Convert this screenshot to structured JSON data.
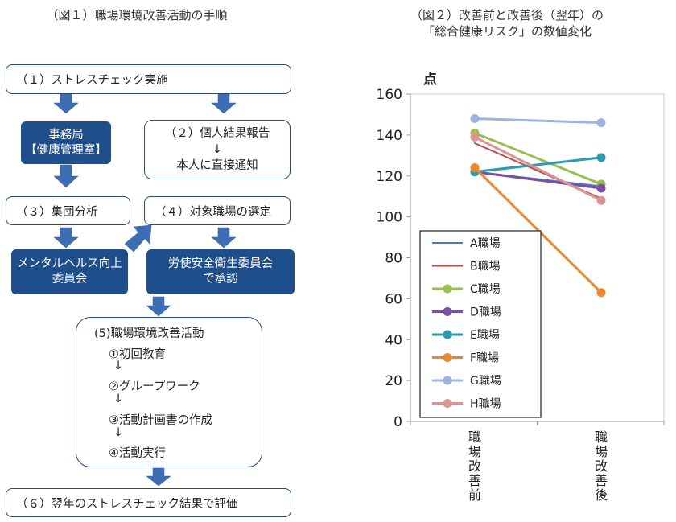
{
  "left": {
    "title": "（図１）職場環境改善活動の手順",
    "step1": "（１）ストレスチェック実施",
    "office_line1": "事務局",
    "office_line2": "【健康管理室】",
    "step2_line1": "（２）個人結果報告",
    "step2_arrow": "↓",
    "step2_line2": "本人に直接通知",
    "step3": "（３）集団分析",
    "step4": "（４）対象職場の選定",
    "mental_line1": "メンタルヘルス向上",
    "mental_line2": "委員会",
    "safety_line1": "労使安全衛生委員会",
    "safety_line2": "で承認",
    "step5_title": "(5)職場環境改善活動",
    "step5_items": [
      "①初回教育",
      "②グループワーク",
      "③活動計画書の作成",
      "④活動実行"
    ],
    "step5_arrow": "↓",
    "step6": "（６）翌年のストレスチェック結果で評価",
    "colors": {
      "dark_box": "#1f4e8c",
      "arrow": "#3d6db5",
      "border": "#2a4a7f"
    }
  },
  "chart_data": {
    "type": "line",
    "title_line1": "（図２）改善前と改善後（翌年）の",
    "title_line2": "「総合健康リスク」の数値変化",
    "ylabel": "点",
    "ylim": [
      0,
      160
    ],
    "yticks": [
      0,
      20,
      40,
      60,
      80,
      100,
      120,
      140,
      160
    ],
    "categories": [
      "職場改善前",
      "職場改善後"
    ],
    "grid": false,
    "legend_position": "left",
    "series": [
      {
        "name": "A職場",
        "values": [
          122,
          115
        ],
        "color": "#4a7ebb",
        "marker": false
      },
      {
        "name": "B職場",
        "values": [
          136,
          109
        ],
        "color": "#be4b48",
        "marker": false
      },
      {
        "name": "C職場",
        "values": [
          141,
          116
        ],
        "color": "#98c04e",
        "marker": true
      },
      {
        "name": "D職場",
        "values": [
          122,
          114
        ],
        "color": "#7b4fa3",
        "marker": true
      },
      {
        "name": "E職場",
        "values": [
          122,
          129
        ],
        "color": "#2b9bb3",
        "marker": true
      },
      {
        "name": "F職場",
        "values": [
          124,
          63
        ],
        "color": "#f0862c",
        "marker": true
      },
      {
        "name": "G職場",
        "values": [
          148,
          146
        ],
        "color": "#9ab5e0",
        "marker": true
      },
      {
        "name": "H職場",
        "values": [
          139,
          108
        ],
        "color": "#d99493",
        "marker": true
      }
    ]
  }
}
